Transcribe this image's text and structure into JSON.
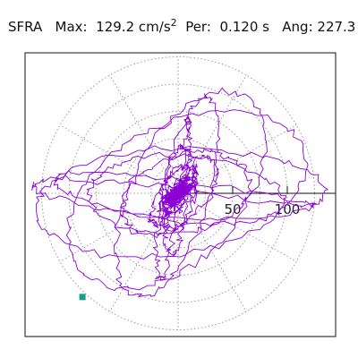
{
  "header": {
    "station": "SFRA",
    "max_label": "Max:",
    "max_value": "129.2",
    "max_unit": "cm/s",
    "max_unit_exp": "2",
    "per_label": "Per:",
    "per_value": "0.120 s",
    "ang_label": "Ang:",
    "ang_value": "227.3"
  },
  "chart_data": {
    "type": "scatter",
    "plot_style": "polar orbit (particle motion trace)",
    "units": "cm/s^2",
    "radial_ticks": [
      50,
      100
    ],
    "radial_tick_labels": [
      "50",
      "100"
    ],
    "radial_rings": [
      25,
      50,
      75,
      100,
      125
    ],
    "spokes_every_deg": 30,
    "range": [
      -160,
      135
    ],
    "grid": true,
    "grid_style": "dotted gray",
    "trace_color": "#8a00d4",
    "marker_color": "#16a085",
    "max_marker": {
      "amplitude": 129.2,
      "angle_deg": 227.3
    }
  }
}
